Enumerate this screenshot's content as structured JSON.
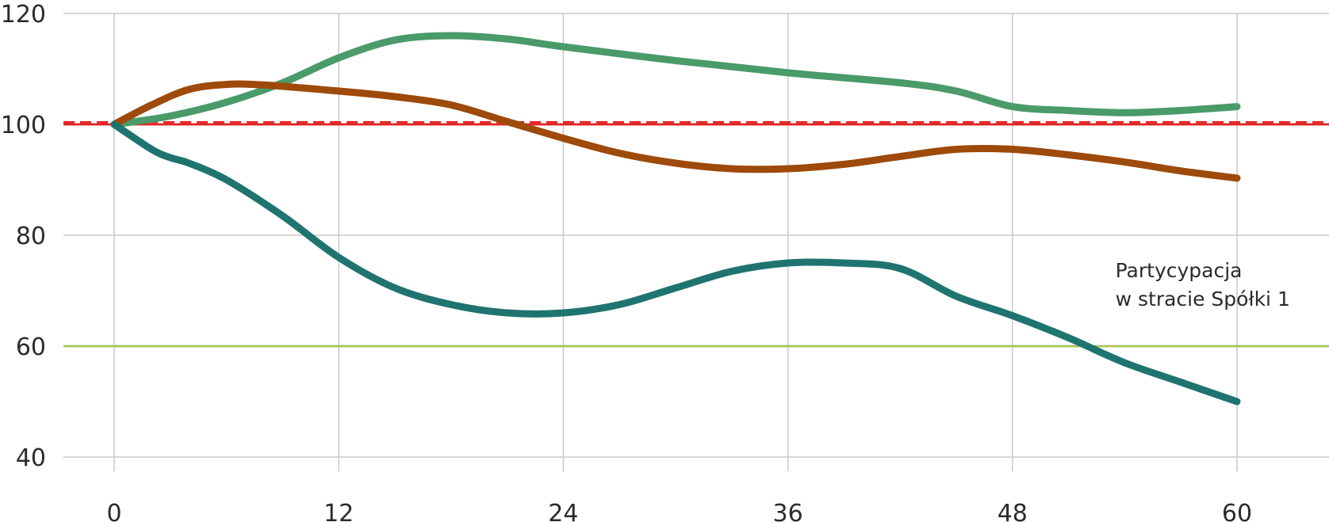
{
  "chart_data": {
    "type": "line",
    "title": "",
    "xlabel": "",
    "ylabel": "",
    "x_ticks": [
      0,
      12,
      24,
      36,
      48,
      60
    ],
    "y_ticks": [
      40,
      60,
      80,
      100,
      120
    ],
    "xlim": [
      -3,
      64
    ],
    "ylim": [
      40,
      120
    ],
    "grid": true,
    "series": [
      {
        "color": "#4a9a6a",
        "points": [
          [
            0,
            100
          ],
          [
            3,
            101.5
          ],
          [
            6,
            104
          ],
          [
            9,
            107.5
          ],
          [
            12,
            112
          ],
          [
            15,
            115.2
          ],
          [
            18,
            116
          ],
          [
            21,
            115.4
          ],
          [
            24,
            114
          ],
          [
            30,
            111.5
          ],
          [
            36,
            109.3
          ],
          [
            42,
            107.5
          ],
          [
            45,
            106
          ],
          [
            48,
            103.2
          ],
          [
            51,
            102.5
          ],
          [
            54,
            102.1
          ],
          [
            57,
            102.5
          ],
          [
            60,
            103.2
          ]
        ]
      },
      {
        "color": "#9e4a0a",
        "points": [
          [
            0,
            100
          ],
          [
            2,
            103.5
          ],
          [
            4,
            106.3
          ],
          [
            6,
            107.2
          ],
          [
            8,
            107.1
          ],
          [
            12,
            106
          ],
          [
            15,
            105
          ],
          [
            18,
            103.5
          ],
          [
            21,
            100.5
          ],
          [
            24,
            97.5
          ],
          [
            27,
            94.8
          ],
          [
            30,
            93
          ],
          [
            33,
            92
          ],
          [
            36,
            92
          ],
          [
            39,
            92.8
          ],
          [
            42,
            94.2
          ],
          [
            45,
            95.5
          ],
          [
            48,
            95.5
          ],
          [
            51,
            94.5
          ],
          [
            54,
            93.2
          ],
          [
            57,
            91.6
          ],
          [
            60,
            90.3
          ]
        ]
      },
      {
        "color": "#1f7470",
        "points": [
          [
            0,
            100
          ],
          [
            2,
            95.5
          ],
          [
            3,
            94
          ],
          [
            4,
            93
          ],
          [
            6,
            90
          ],
          [
            9,
            83.5
          ],
          [
            12,
            76
          ],
          [
            15,
            70.5
          ],
          [
            18,
            67.5
          ],
          [
            21,
            66
          ],
          [
            24,
            66
          ],
          [
            27,
            67.5
          ],
          [
            30,
            70.5
          ],
          [
            33,
            73.5
          ],
          [
            36,
            75
          ],
          [
            39,
            75
          ],
          [
            42,
            74
          ],
          [
            45,
            69
          ],
          [
            48,
            65.5
          ],
          [
            51,
            61.5
          ],
          [
            54,
            57
          ],
          [
            57,
            53.5
          ],
          [
            60,
            50
          ]
        ]
      }
    ],
    "reference_lines": [
      {
        "y": 100,
        "color": "#e41f1f",
        "style": "solid"
      },
      {
        "y": 100.4,
        "color": "#e41f1f",
        "style": "dashed"
      },
      {
        "y": 60,
        "color": "#a6c25a",
        "style": "solid"
      }
    ]
  },
  "annotation": {
    "line1": "Partycypacja",
    "line2": "w stracie Spółki 1",
    "x": 53.5,
    "y": 72.4
  }
}
